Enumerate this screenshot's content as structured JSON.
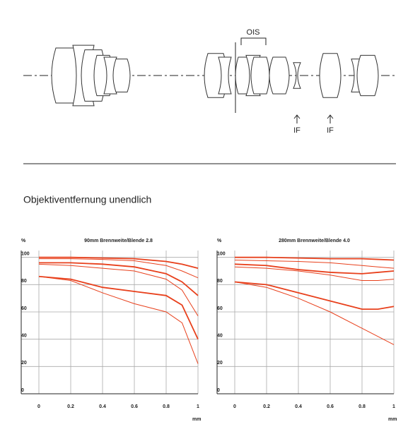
{
  "diagram": {
    "labels": [
      "OIS",
      "IF",
      "IF"
    ]
  },
  "heading": "Objektiventfernung unendlich",
  "chart_data": [
    {
      "type": "line",
      "title": "90mm Brennweite/Blende 2.8",
      "y_label": "%",
      "x_label": "mm",
      "x": [
        0,
        0.2,
        0.4,
        0.6,
        0.8,
        0.9,
        1
      ],
      "xlim": [
        0,
        1
      ],
      "xticks": [
        0,
        0.2,
        0.4,
        0.6,
        0.8,
        1
      ],
      "ylim": [
        0,
        105
      ],
      "yticks": [
        0,
        20,
        40,
        60,
        80,
        100
      ],
      "grid": true,
      "series": [
        {
          "color": "#e8401c",
          "values": [
            100,
            100,
            99.5,
            99,
            97,
            95,
            92
          ]
        },
        {
          "color": "#e8401c",
          "values": [
            99,
            99,
            98.5,
            97.5,
            94,
            90,
            85
          ]
        },
        {
          "color": "#e8401c",
          "values": [
            96,
            96,
            95,
            93,
            88,
            82,
            72
          ]
        },
        {
          "color": "#e8401c",
          "values": [
            95,
            94,
            92,
            90,
            84,
            76,
            57
          ]
        },
        {
          "color": "#e8401c",
          "values": [
            86,
            84,
            78,
            75,
            72,
            65,
            40
          ]
        },
        {
          "color": "#e8401c",
          "values": [
            86,
            83,
            74,
            66,
            60,
            52,
            22
          ]
        }
      ]
    },
    {
      "type": "line",
      "title": "280mm Brennweite/Blende 4.0",
      "y_label": "%",
      "x_label": "mm",
      "x": [
        0,
        0.2,
        0.4,
        0.6,
        0.8,
        0.9,
        1
      ],
      "xlim": [
        0,
        1
      ],
      "xticks": [
        0,
        0.2,
        0.4,
        0.6,
        0.8,
        1
      ],
      "ylim": [
        0,
        105
      ],
      "yticks": [
        0,
        20,
        40,
        60,
        80,
        100
      ],
      "grid": true,
      "series": [
        {
          "color": "#e8401c",
          "values": [
            100,
            100,
            99.5,
            99,
            99,
            98.5,
            98
          ]
        },
        {
          "color": "#e8401c",
          "values": [
            98,
            97.5,
            97,
            96,
            94,
            93,
            92
          ]
        },
        {
          "color": "#e8401c",
          "values": [
            95,
            94,
            91,
            89,
            88,
            89,
            90
          ]
        },
        {
          "color": "#e8401c",
          "values": [
            93,
            92,
            90,
            87,
            83,
            83,
            84
          ]
        },
        {
          "color": "#e8401c",
          "values": [
            82,
            80,
            74,
            68,
            62,
            62,
            64
          ]
        },
        {
          "color": "#e8401c",
          "values": [
            82,
            78,
            70,
            60,
            48,
            42,
            36
          ]
        }
      ]
    }
  ]
}
